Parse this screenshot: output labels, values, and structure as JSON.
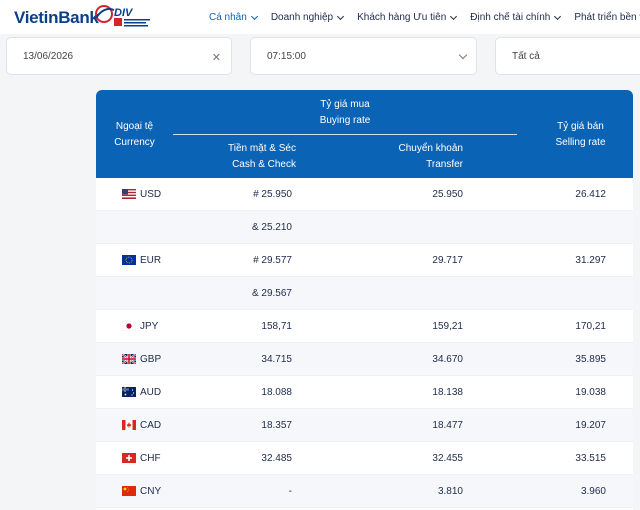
{
  "brand": {
    "name_a": "Vietin",
    "name_b": "Bank",
    "badge": "DIV"
  },
  "nav": [
    {
      "label": "Cá nhân",
      "active": true
    },
    {
      "label": "Doanh nghiệp",
      "active": false
    },
    {
      "label": "Khách hàng Ưu tiên",
      "active": false
    },
    {
      "label": "Định chế tài chính",
      "active": false
    },
    {
      "label": "Phát triển bền vững",
      "active": false
    }
  ],
  "filters": {
    "date": "13/06/2026",
    "time": "07:15:00",
    "scope": "Tất cả"
  },
  "table": {
    "col_currency_vi": "Ngoại tệ",
    "col_currency_en": "Currency",
    "col_buy_vi": "Tỷ giá mua",
    "col_buy_en": "Buying rate",
    "col_cash_vi": "Tiền mặt & Séc",
    "col_cash_en": "Cash & Check",
    "col_transfer_vi": "Chuyển khoản",
    "col_transfer_en": "Transfer",
    "col_sell_vi": "Tỷ giá bán",
    "col_sell_en": "Selling rate",
    "rows": [
      {
        "flag": "us-flag-icon",
        "code": "USD",
        "cash": "# 25.950",
        "transfer": "25.950",
        "sell": "26.412"
      },
      {
        "flag": "",
        "code": "",
        "cash": "& 25.210",
        "transfer": "",
        "sell": ""
      },
      {
        "flag": "eu-flag-icon",
        "code": "EUR",
        "cash": "# 29.577",
        "transfer": "29.717",
        "sell": "31.297"
      },
      {
        "flag": "",
        "code": "",
        "cash": "& 29.567",
        "transfer": "",
        "sell": ""
      },
      {
        "flag": "jp-flag-icon",
        "code": "JPY",
        "cash": "158,71",
        "transfer": "159,21",
        "sell": "170,21"
      },
      {
        "flag": "gb-flag-icon",
        "code": "GBP",
        "cash": "34.715",
        "transfer": "34.670",
        "sell": "35.895"
      },
      {
        "flag": "au-flag-icon",
        "code": "AUD",
        "cash": "18.088",
        "transfer": "18.138",
        "sell": "19.038"
      },
      {
        "flag": "ca-flag-icon",
        "code": "CAD",
        "cash": "18.357",
        "transfer": "18.477",
        "sell": "19.207"
      },
      {
        "flag": "ch-flag-icon",
        "code": "CHF",
        "cash": "32.485",
        "transfer": "32.455",
        "sell": "33.515"
      },
      {
        "flag": "cn-flag-icon",
        "code": "CNY",
        "cash": "-",
        "transfer": "3.810",
        "sell": "3.960"
      }
    ]
  }
}
